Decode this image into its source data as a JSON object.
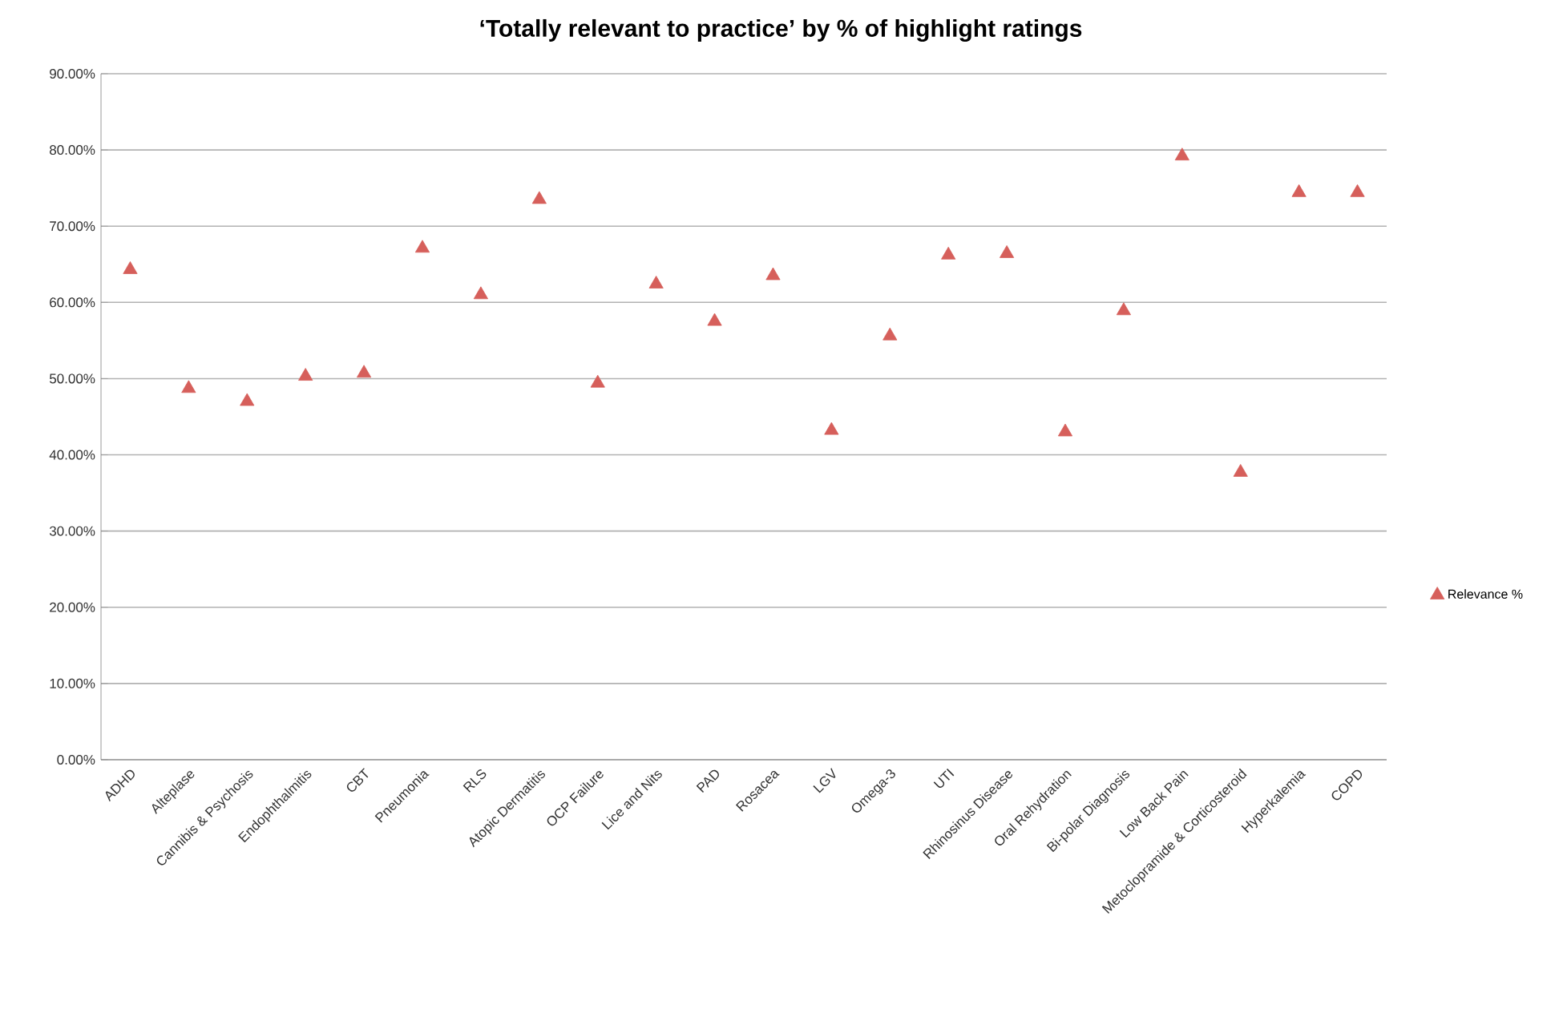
{
  "chart_data": {
    "type": "scatter",
    "title": "‘Totally relevant to practice’ by % of highlight ratings",
    "categories": [
      "ADHD",
      "Alteplase",
      "Cannibis & Psychosis",
      "Endophthalmitis",
      "CBT",
      "Pneumonia",
      "RLS",
      "Atopic Dermatitis",
      "OCP Failure",
      "Lice and Nits",
      "PAD",
      "Rosacea",
      "LGV",
      "Omega-3",
      "UTI",
      "Rhinosinus Disease",
      "Oral Rehydration",
      "Bi-polar Diagnosis",
      "Low Back Pain",
      "Metoclopramide & Corticosteroid",
      "Hyperkalemia",
      "COPD"
    ],
    "series": [
      {
        "name": "Relevance %",
        "color": "#d65f5b",
        "values": [
          64.3,
          48.7,
          47.0,
          50.3,
          50.7,
          67.1,
          61.0,
          73.5,
          49.4,
          62.4,
          57.5,
          63.5,
          43.2,
          55.6,
          66.2,
          66.4,
          43.0,
          58.9,
          79.2,
          37.7,
          74.4,
          74.4
        ]
      }
    ],
    "ylim": [
      0,
      90
    ],
    "yticks": [
      {
        "value": 0,
        "label": "0.00%"
      },
      {
        "value": 10,
        "label": "10.00%"
      },
      {
        "value": 20,
        "label": "20.00%"
      },
      {
        "value": 30,
        "label": "30.00%"
      },
      {
        "value": 40,
        "label": "40.00%"
      },
      {
        "value": 50,
        "label": "50.00%"
      },
      {
        "value": 60,
        "label": "60.00%"
      },
      {
        "value": 70,
        "label": "70.00%"
      },
      {
        "value": 80,
        "label": "80.00%"
      },
      {
        "value": 90,
        "label": "90.00%"
      }
    ],
    "grid": "y",
    "legend": "right",
    "marker": "triangle"
  }
}
